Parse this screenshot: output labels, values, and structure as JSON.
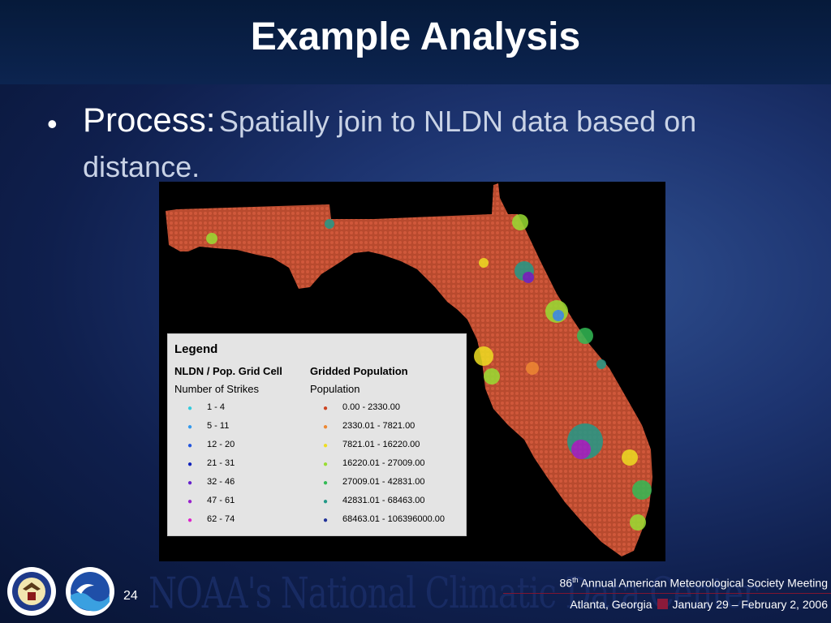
{
  "slide": {
    "title": "Example Analysis",
    "bullet": {
      "label": "Process:",
      "text": "Spatially join to NLDN data based on distance."
    },
    "page_number": "24"
  },
  "legend": {
    "title": "Legend",
    "left": {
      "header1": "NLDN / Pop. Grid Cell",
      "header2": "Number of Strikes",
      "items": [
        {
          "label": "1 - 4",
          "color": "#33ccdd"
        },
        {
          "label": "5 - 11",
          "color": "#3399ee"
        },
        {
          "label": "12 - 20",
          "color": "#2255dd"
        },
        {
          "label": "21 - 31",
          "color": "#1122bb"
        },
        {
          "label": "32 - 46",
          "color": "#6622cc"
        },
        {
          "label": "47 - 61",
          "color": "#9922cc"
        },
        {
          "label": "62 - 74",
          "color": "#dd22cc"
        }
      ]
    },
    "right": {
      "header1": "Gridded Population",
      "header2": "Population",
      "items": [
        {
          "label": "0.00 - 2330.00",
          "color": "#cc4422"
        },
        {
          "label": "2330.01 - 7821.00",
          "color": "#ee8833"
        },
        {
          "label": "7821.01 - 16220.00",
          "color": "#eedd22"
        },
        {
          "label": "16220.01 - 27009.00",
          "color": "#99dd33"
        },
        {
          "label": "27009.01 - 42831.00",
          "color": "#33bb55"
        },
        {
          "label": "42831.01 - 68463.00",
          "color": "#229988"
        },
        {
          "label": "68463.01 - 106396000.00",
          "color": "#223399"
        }
      ]
    }
  },
  "footer": {
    "wordmark": "NOAA's National Climatic Data Center",
    "conference_ordinal": "86",
    "conference_suffix": "th",
    "conference_name": "Annual American Meteorological Society Meeting",
    "location": "Atlanta, Georgia",
    "dates": "January 29 – February 2, 2006",
    "logos": [
      "department-of-commerce-seal",
      "noaa-logo"
    ]
  }
}
